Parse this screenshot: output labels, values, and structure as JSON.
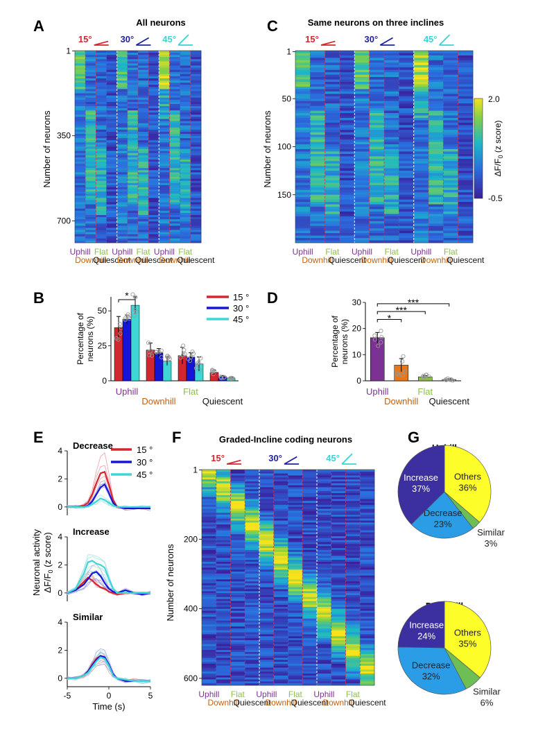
{
  "panel_letters": {
    "A": "A",
    "B": "B",
    "C": "C",
    "D": "D",
    "E": "E",
    "F": "F",
    "G": "G"
  },
  "titles": {
    "A": "All neurons",
    "C": "Same  neurons on three inclines",
    "F": "Graded-Incline coding neurons",
    "G_up": "Uphill",
    "G_down": "Downhill"
  },
  "inclines": [
    "15°",
    "30°",
    "45°"
  ],
  "incline_colors": [
    "#d22630",
    "#1f1f9e",
    "#39d3d3"
  ],
  "phase_labels": [
    "Uphill",
    "Downhill",
    "Flat",
    "Quiescent"
  ],
  "phase_colors": {
    "Uphill": "#7b3294",
    "Downhill": "#c0610f",
    "Flat": "#8cbf4a",
    "Quiescent": "#111111"
  },
  "heatmap_ylabel": "Number of neurons",
  "heatmap_A": {
    "yticks": [
      "1",
      "350",
      "700"
    ]
  },
  "heatmap_C": {
    "yticks": [
      "1",
      "50",
      "100",
      "150"
    ]
  },
  "heatmap_F": {
    "yticks": [
      "1",
      "200",
      "400",
      "600"
    ]
  },
  "colorbar": {
    "max": "2.0",
    "min": "-0.5",
    "label": "ΔF/F",
    "label_sub": "0",
    "label_rest": " (z score)"
  },
  "chart_data": [
    {
      "id": "B",
      "type": "bar",
      "categories": [
        "Uphill",
        "Downhill",
        "Flat",
        "Quiescent"
      ],
      "ylabel_line1": "Percentage of",
      "ylabel_line2": "neurons (%)",
      "ylim": [
        0,
        60
      ],
      "yticks": [
        "0",
        "25",
        "50"
      ],
      "series": [
        {
          "name": "15 °",
          "color": "#d22630",
          "values": [
            38,
            22,
            18,
            6
          ],
          "errors": [
            8,
            5,
            6,
            1.5
          ]
        },
        {
          "name": "30 °",
          "color": "#1515d6",
          "values": [
            44,
            20,
            17,
            3
          ],
          "errors": [
            3,
            3,
            3,
            0.8
          ]
        },
        {
          "name": "45 °",
          "color": "#3fd6d6",
          "values": [
            54,
            14,
            12,
            2
          ],
          "errors": [
            6,
            3,
            5,
            0.5
          ]
        }
      ],
      "significance": [
        {
          "label": "*",
          "between": [
            "15 °",
            "45 °"
          ],
          "category": "Uphill"
        }
      ]
    },
    {
      "id": "D",
      "type": "bar",
      "categories": [
        "Uphill",
        "Downhill",
        "Flat",
        "Quiescent"
      ],
      "ylabel_line1": "Percentage of",
      "ylabel_line2": "neurons (%)",
      "ylim": [
        0,
        30
      ],
      "yticks": [
        "0",
        "10",
        "20",
        "30"
      ],
      "values": [
        16.5,
        6,
        1.5,
        0.5
      ],
      "errors": [
        2,
        2.5,
        0.5,
        0.3
      ],
      "colors": [
        "#7b3294",
        "#e8771a",
        "#8cbf4a",
        "#999999"
      ],
      "significance": [
        {
          "label": "*",
          "pair": [
            "Uphill",
            "Downhill"
          ]
        },
        {
          "label": "***",
          "pair": [
            "Uphill",
            "Flat"
          ]
        },
        {
          "label": "***",
          "pair": [
            "Uphill",
            "Quiescent"
          ]
        }
      ]
    },
    {
      "id": "E",
      "type": "line",
      "xlabel": "Time (s)",
      "ylabel_line1": "Neuronal activity",
      "ylabel_line2": "ΔF/F",
      "ylabel_sub": "0",
      "ylabel_rest": " (z score)",
      "xlim": [
        -5,
        5
      ],
      "xticks": [
        "-5",
        "0",
        "5"
      ],
      "subplots": [
        {
          "title": "Decrease",
          "ylim": [
            -0.6,
            4
          ],
          "yticks": [
            "0",
            "2",
            "4"
          ],
          "x": [
            -5,
            -4,
            -3,
            -2.5,
            -2,
            -1.5,
            -1,
            -0.5,
            0,
            0.5,
            1,
            2,
            3,
            4,
            5
          ],
          "series": [
            {
              "name": "15 °",
              "values": [
                0,
                0,
                0.1,
                0.3,
                0.9,
                1.7,
                2.4,
                2.5,
                1.6,
                0.5,
                0,
                -0.1,
                -0.1,
                -0.1,
                -0.1
              ]
            },
            {
              "name": "30 °",
              "values": [
                0,
                0,
                0,
                0.1,
                0.4,
                0.9,
                1.4,
                1.6,
                1.0,
                0.3,
                0,
                -0.1,
                -0.1,
                -0.1,
                -0.1
              ]
            },
            {
              "name": "45 °",
              "values": [
                0,
                0,
                0,
                0.05,
                0.2,
                0.4,
                0.6,
                0.5,
                0.3,
                0.1,
                0,
                0,
                0,
                0,
                0
              ]
            }
          ]
        },
        {
          "title": "Increase",
          "ylim": [
            -0.6,
            4
          ],
          "yticks": [
            "0",
            "2",
            "4"
          ],
          "x": [
            -5,
            -4,
            -3,
            -2.5,
            -2,
            -1.5,
            -1,
            -0.5,
            0,
            0.5,
            1,
            2,
            3,
            4,
            5
          ],
          "series": [
            {
              "name": "15 °",
              "values": [
                0,
                0.2,
                0.8,
                1.1,
                0.9,
                0.6,
                0.4,
                0.3,
                0.1,
                0,
                -0.1,
                0,
                0,
                0,
                0
              ]
            },
            {
              "name": "30 °",
              "values": [
                0,
                0.2,
                0.6,
                1.0,
                1.4,
                1.5,
                1.2,
                0.7,
                0.3,
                0.1,
                0,
                0.2,
                0,
                -0.1,
                0
              ]
            },
            {
              "name": "45 °",
              "values": [
                0,
                0.3,
                1.4,
                2.2,
                2.3,
                2.1,
                2.0,
                1.8,
                1.0,
                0.3,
                0,
                0,
                0,
                0,
                0
              ]
            }
          ]
        },
        {
          "title": "Similar",
          "ylim": [
            -0.6,
            4
          ],
          "yticks": [
            "0",
            "2",
            "4"
          ],
          "x": [
            -5,
            -4,
            -3,
            -2.5,
            -2,
            -1.5,
            -1,
            -0.5,
            0,
            0.5,
            1,
            2,
            3,
            4,
            5
          ],
          "series": [
            {
              "name": "15 °",
              "values": [
                0,
                0,
                0.2,
                0.5,
                1.0,
                1.4,
                1.6,
                1.5,
                0.9,
                0.2,
                0,
                -0.2,
                -0.2,
                -0.2,
                -0.2
              ]
            },
            {
              "name": "30 °",
              "values": [
                0,
                0,
                0.2,
                0.5,
                0.9,
                1.3,
                1.6,
                1.5,
                1.0,
                0.3,
                0,
                -0.2,
                -0.2,
                -0.2,
                -0.2
              ]
            },
            {
              "name": "45 °",
              "values": [
                0,
                0,
                0.2,
                0.4,
                0.8,
                1.2,
                1.5,
                1.4,
                0.9,
                0.2,
                0,
                -0.1,
                -0.2,
                -0.2,
                -0.2
              ]
            }
          ]
        }
      ]
    },
    {
      "id": "G_up",
      "type": "pie",
      "title": "Uphill",
      "slices": [
        {
          "label": "Others",
          "pct": "36%",
          "value": 36,
          "color": "#fdfd2a",
          "text_color": "#222222"
        },
        {
          "label": "Similar",
          "pct": "3%",
          "value": 3,
          "color": "#6cbe55",
          "text_color": "#222222"
        },
        {
          "label": "Decrease",
          "pct": "23%",
          "value": 23,
          "color": "#2b9de6",
          "text_color": "#222222"
        },
        {
          "label": "Increase",
          "pct": "37%",
          "value": 37,
          "color": "#3c2fa0",
          "text_color": "#ffffff"
        }
      ]
    },
    {
      "id": "G_down",
      "type": "pie",
      "title": "Downhill",
      "slices": [
        {
          "label": "Others",
          "pct": "35%",
          "value": 35,
          "color": "#fdfd2a",
          "text_color": "#222222"
        },
        {
          "label": "Similar",
          "pct": "6%",
          "value": 6,
          "color": "#6cbe55",
          "text_color": "#222222"
        },
        {
          "label": "Decrease",
          "pct": "32%",
          "value": 32,
          "color": "#2b9de6",
          "text_color": "#222222"
        },
        {
          "label": "Increase",
          "pct": "24%",
          "value": 24,
          "color": "#3c2fa0",
          "text_color": "#ffffff"
        }
      ]
    }
  ]
}
